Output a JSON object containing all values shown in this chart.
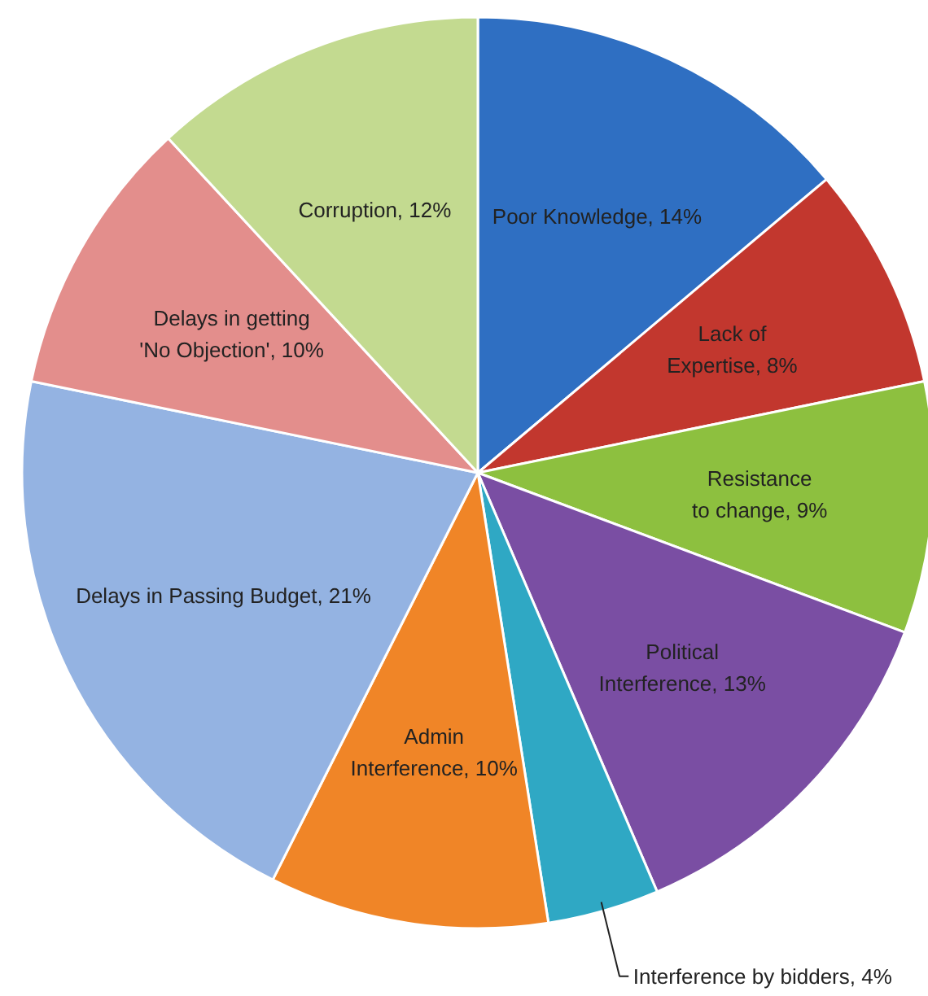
{
  "chart_data": {
    "type": "pie",
    "categories": [
      "Poor Knowledge",
      "Lack of Expertise",
      "Resistance to change",
      "Political Interference",
      "Interference by bidders",
      "Admin Interference",
      "Delays in Passing Budget",
      "Delays in getting 'No Objection'",
      "Corruption"
    ],
    "values": [
      14,
      8,
      9,
      13,
      4,
      10,
      21,
      10,
      12
    ],
    "value_labels": [
      "14%",
      "8%",
      "9%",
      "13%",
      "4%",
      "10%",
      "21%",
      "10%",
      "12%"
    ],
    "colors": [
      "#2f6fc2",
      "#c2372e",
      "#8dc03f",
      "#7a4ea3",
      "#2fa8c4",
      "#f08527",
      "#94b3e2",
      "#e38e8c",
      "#c3da90"
    ]
  }
}
